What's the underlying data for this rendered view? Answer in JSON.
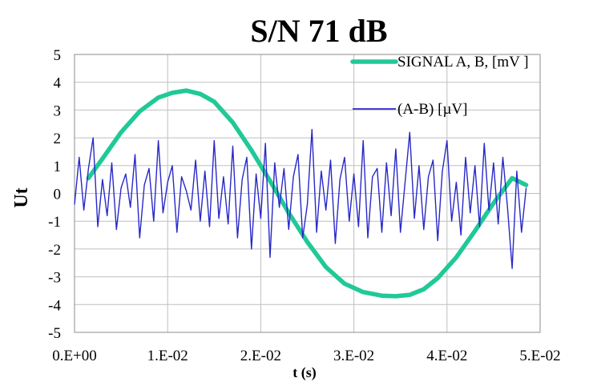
{
  "chart_data": {
    "type": "line",
    "title": "S/N 71 dB",
    "xlabel": "t (s)",
    "ylabel": "Ut",
    "xlim": [
      0,
      0.05
    ],
    "ylim": [
      -5,
      5
    ],
    "x_ticks": [
      0,
      0.01,
      0.02,
      0.03,
      0.04,
      0.05
    ],
    "x_tick_labels": [
      "0.E+00",
      "1.E-02",
      "2.E-02",
      "3.E-02",
      "4.E-02",
      "5.E-02"
    ],
    "y_ticks": [
      -5,
      -4,
      -3,
      -2,
      -1,
      0,
      1,
      2,
      3,
      4,
      5
    ],
    "y_tick_labels": [
      "-5",
      "-4",
      "-3",
      "-2",
      "-1",
      "0",
      "1",
      "2",
      "3",
      "4",
      "5"
    ],
    "grid": true,
    "legend_position": "top-right",
    "series": [
      {
        "name": "SIGNAL A, B, [mV ]",
        "color": "#20c997",
        "x": [
          0.0015,
          0.003,
          0.005,
          0.007,
          0.009,
          0.0105,
          0.012,
          0.0135,
          0.015,
          0.017,
          0.019,
          0.021,
          0.023,
          0.025,
          0.027,
          0.029,
          0.031,
          0.033,
          0.0345,
          0.036,
          0.0375,
          0.039,
          0.041,
          0.043,
          0.045,
          0.047,
          0.0485
        ],
        "y": [
          0.55,
          1.25,
          2.2,
          2.95,
          3.45,
          3.62,
          3.7,
          3.58,
          3.3,
          2.55,
          1.55,
          0.45,
          -0.7,
          -1.75,
          -2.65,
          -3.25,
          -3.55,
          -3.68,
          -3.7,
          -3.65,
          -3.45,
          -3.05,
          -2.3,
          -1.35,
          -0.35,
          0.55,
          0.3
        ]
      },
      {
        "name": "(A-B) [µV]",
        "color": "#2828c8",
        "x": [
          0.0,
          0.0005,
          0.001,
          0.0015,
          0.002,
          0.0025,
          0.003,
          0.0035,
          0.004,
          0.0045,
          0.005,
          0.0055,
          0.006,
          0.0065,
          0.007,
          0.0075,
          0.008,
          0.0085,
          0.009,
          0.0095,
          0.01,
          0.0105,
          0.011,
          0.0115,
          0.012,
          0.0125,
          0.013,
          0.0135,
          0.014,
          0.0145,
          0.015,
          0.0155,
          0.016,
          0.0165,
          0.017,
          0.0175,
          0.018,
          0.0185,
          0.019,
          0.0195,
          0.02,
          0.0205,
          0.021,
          0.0215,
          0.022,
          0.0225,
          0.023,
          0.0235,
          0.024,
          0.0245,
          0.025,
          0.0255,
          0.026,
          0.0265,
          0.027,
          0.0275,
          0.028,
          0.0285,
          0.029,
          0.0295,
          0.03,
          0.0305,
          0.031,
          0.0315,
          0.032,
          0.0325,
          0.033,
          0.0335,
          0.034,
          0.0345,
          0.035,
          0.0355,
          0.036,
          0.0365,
          0.037,
          0.0375,
          0.038,
          0.0385,
          0.039,
          0.0395,
          0.04,
          0.0405,
          0.041,
          0.0415,
          0.042,
          0.0425,
          0.043,
          0.0435,
          0.044,
          0.0445,
          0.045,
          0.0455,
          0.046,
          0.0465,
          0.047,
          0.0475,
          0.048,
          0.0485
        ],
        "y": [
          -0.4,
          1.3,
          -0.6,
          0.9,
          2.0,
          -1.2,
          0.5,
          -0.8,
          1.1,
          -1.3,
          0.2,
          0.7,
          -0.5,
          1.4,
          -1.6,
          0.3,
          0.9,
          -1.0,
          1.9,
          -0.7,
          0.4,
          1.0,
          -1.4,
          0.6,
          0.1,
          -0.6,
          1.2,
          -1.0,
          0.8,
          -1.2,
          1.9,
          -0.9,
          0.6,
          -1.1,
          1.7,
          -1.6,
          0.5,
          1.3,
          -2.0,
          0.7,
          -0.9,
          1.8,
          -2.3,
          1.1,
          -0.5,
          0.9,
          -1.3,
          0.6,
          1.4,
          -1.6,
          -0.4,
          2.3,
          -1.4,
          0.8,
          -0.6,
          1.2,
          -1.8,
          0.5,
          1.3,
          -1.0,
          0.7,
          -1.2,
          1.9,
          -1.6,
          0.6,
          0.9,
          -1.4,
          1.1,
          -0.8,
          1.6,
          -1.4,
          0.4,
          2.2,
          -0.9,
          1.0,
          -1.3,
          0.6,
          1.2,
          -1.7,
          0.8,
          1.9,
          -1.0,
          0.4,
          -1.5,
          1.3,
          -0.7,
          1.0,
          -1.2,
          1.8,
          -0.6,
          1.1,
          -1.1,
          1.3,
          -0.5,
          -2.7,
          0.8,
          -1.4,
          0.2
        ]
      }
    ]
  }
}
